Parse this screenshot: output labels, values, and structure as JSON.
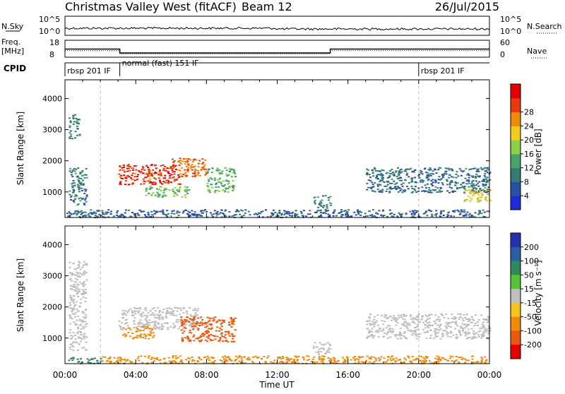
{
  "header": {
    "title": "Christmas Valley West (fitACF)",
    "beam": "Beam 12",
    "date": "26/Jul/2015"
  },
  "nsky_panel": {
    "label": "N.Sky",
    "left_ticks": [
      "10^5",
      "10^0"
    ],
    "right_ticks": [
      "10^5",
      "10^0"
    ],
    "right_label": "N.Search"
  },
  "freq_panel": {
    "label_line1": "Freq.",
    "label_line2": "[MHz]",
    "left_ticks": [
      "18",
      "8"
    ],
    "right_ticks": [
      "60",
      "0"
    ],
    "right_label": "Nave",
    "freq_steps_mhz": [
      [
        0,
        12.8
      ],
      [
        3.1,
        12.8
      ],
      [
        3.1,
        10.5
      ],
      [
        15,
        10.5
      ],
      [
        15,
        12.8
      ],
      [
        24,
        12.8
      ]
    ],
    "nave_steps": [
      [
        0,
        23
      ],
      [
        3.1,
        23
      ],
      [
        3.1,
        12
      ],
      [
        15,
        12
      ],
      [
        15,
        23
      ],
      [
        24,
        23
      ]
    ]
  },
  "cpid": {
    "label": "CPID",
    "segments": [
      {
        "name": "rbsp 201 IF",
        "start_h": 0,
        "end_h": 3.1
      },
      {
        "name": "normal (fast) 151 IF",
        "start_h": 3.1,
        "end_h": 20.0
      },
      {
        "name": "rbsp 201 IF",
        "start_h": 20.0,
        "end_h": 24
      }
    ]
  },
  "colors": {
    "power_scale": [
      "#1f2bd9",
      "#2b4fa8",
      "#357a73",
      "#4aa36b",
      "#8bd14a",
      "#f2cc1a",
      "#f08a0c",
      "#e83a0c",
      "#e30000"
    ],
    "velocity_scale": [
      "#2430b0",
      "#2a5fa6",
      "#2f8a5a",
      "#55c23a",
      "#bfbfbf",
      "#f2c61a",
      "#f08a0c",
      "#ea5a0c",
      "#e30000"
    ]
  },
  "chart_data": [
    {
      "type": "heatmap",
      "name": "power",
      "xlabel": "",
      "ylabel": "Slant Range [km]",
      "xlim": [
        0,
        24
      ],
      "ylim": [
        180,
        4600
      ],
      "yticks": [
        "1000",
        "2000",
        "3000",
        "4000"
      ],
      "colorbar_label": "Power [dB]",
      "colorbar_ticks": [
        "4",
        "8",
        "12",
        "16",
        "20",
        "24",
        "28"
      ],
      "regions": [
        {
          "t0": 3.0,
          "t1": 6.5,
          "r0": 1250,
          "r1": 1900,
          "value": 27
        },
        {
          "t0": 6.0,
          "t1": 8.0,
          "r0": 1500,
          "r1": 2100,
          "value": 24
        },
        {
          "t0": 8.0,
          "t1": 9.6,
          "r0": 1000,
          "r1": 1800,
          "value": 14
        },
        {
          "t0": 4.5,
          "t1": 7.0,
          "r0": 850,
          "r1": 1200,
          "value": 15
        },
        {
          "t0": 0.2,
          "t1": 0.8,
          "r0": 2700,
          "r1": 3500,
          "value": 10
        },
        {
          "t0": 0.2,
          "t1": 1.2,
          "r0": 600,
          "r1": 1800,
          "value": 10
        },
        {
          "t0": 14.0,
          "t1": 15.0,
          "r0": 500,
          "r1": 900,
          "value": 11
        },
        {
          "t0": 17.0,
          "t1": 24.0,
          "r0": 1000,
          "r1": 1800,
          "value": 9
        },
        {
          "t0": 22.5,
          "t1": 24.0,
          "r0": 700,
          "r1": 1100,
          "value": 19
        },
        {
          "t0": 0.0,
          "t1": 24.0,
          "r0": 200,
          "r1": 450,
          "value": 8
        }
      ]
    },
    {
      "type": "heatmap",
      "name": "velocity",
      "xlabel": "Time UT",
      "ylabel": "Slant Range [km]",
      "xlim": [
        0,
        24
      ],
      "ylim": [
        180,
        4600
      ],
      "xticks": [
        "00:00",
        "04:00",
        "08:00",
        "12:00",
        "16:00",
        "20:00",
        "00:00"
      ],
      "yticks": [
        "1000",
        "2000",
        "3000",
        "4000"
      ],
      "colorbar_label": "Velocity [m s⁻¹]",
      "colorbar_ticks": [
        "200",
        "100",
        "50",
        "15",
        "-15",
        "-50",
        "-100",
        "-200"
      ],
      "regions": [
        {
          "t0": 3.0,
          "t1": 7.5,
          "r0": 1300,
          "r1": 2000,
          "value": 0
        },
        {
          "t0": 6.5,
          "t1": 9.6,
          "r0": 900,
          "r1": 1700,
          "value": -100
        },
        {
          "t0": 3.2,
          "t1": 5.0,
          "r0": 1000,
          "r1": 1400,
          "value": -50
        },
        {
          "t0": 0.2,
          "t1": 1.2,
          "r0": 600,
          "r1": 3500,
          "value": 0
        },
        {
          "t0": 14.0,
          "t1": 15.0,
          "r0": 500,
          "r1": 900,
          "value": 0
        },
        {
          "t0": 17.0,
          "t1": 24.0,
          "r0": 1000,
          "r1": 1800,
          "value": 0
        },
        {
          "t0": 0.0,
          "t1": 2.0,
          "r0": 200,
          "r1": 400,
          "value": 40
        },
        {
          "t0": 2.0,
          "t1": 24.0,
          "r0": 200,
          "r1": 450,
          "value": -40
        }
      ]
    }
  ]
}
